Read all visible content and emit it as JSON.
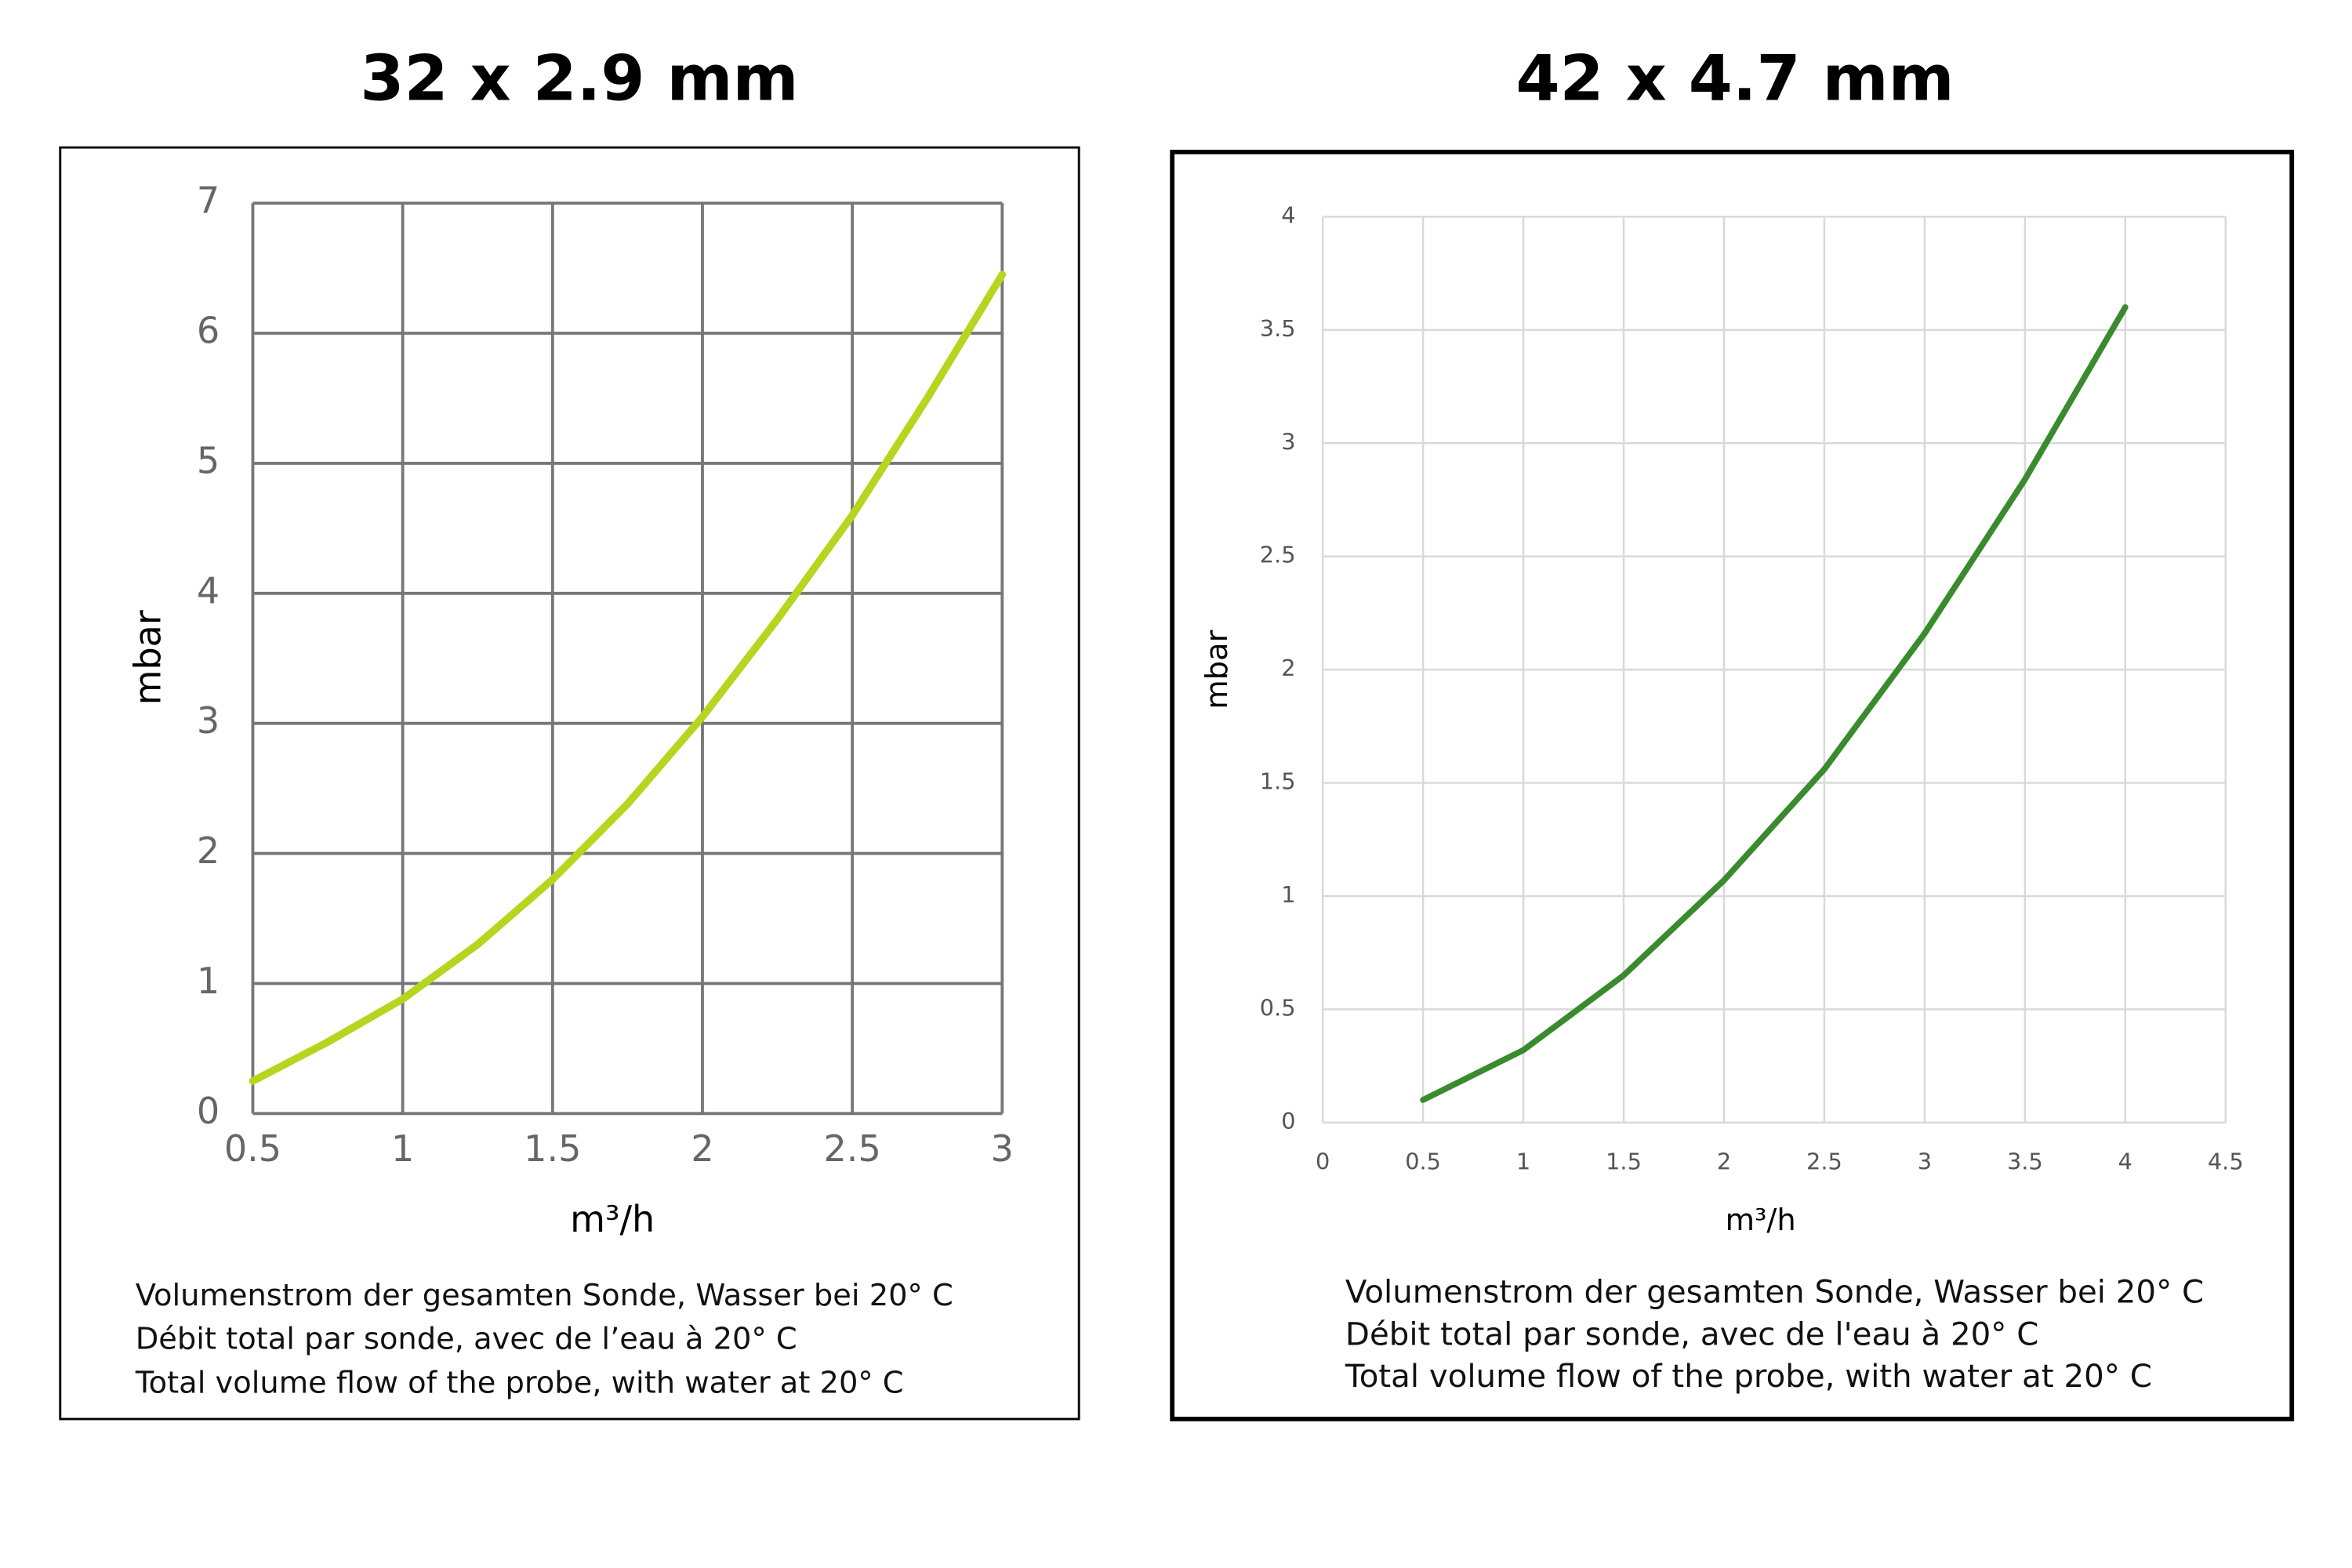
{
  "chart_data": [
    {
      "type": "line",
      "title": "32 x 2.9 mm",
      "y_label": "mbar",
      "x_label": "m³/h",
      "notes": [
        "Volumenstrom der gesamten Sonde, Wasser bei 20° C",
        "Débit total par sonde, avec de l’eau à 20° C",
        "Total volume flow of the probe, with water at 20° C"
      ],
      "x": [
        0.5,
        0.75,
        1,
        1.25,
        1.5,
        1.75,
        2,
        2.25,
        2.5,
        2.75,
        3
      ],
      "values": [
        0.25,
        0.55,
        0.88,
        1.3,
        1.8,
        2.38,
        3.05,
        3.8,
        4.6,
        5.5,
        6.45
      ],
      "color": "#b5d61e",
      "xlim": [
        0.5,
        3
      ],
      "xticks": [
        0.5,
        1,
        1.5,
        2,
        2.5,
        3
      ],
      "ylim": [
        0,
        7
      ],
      "yticks": [
        0,
        1,
        2,
        3,
        4,
        5,
        6,
        7
      ],
      "grid": true
    },
    {
      "type": "line",
      "title": "42 x 4.7 mm",
      "y_label": "mbar",
      "x_label": "m³/h",
      "notes": [
        "Volumenstrom der gesamten Sonde, Wasser bei 20° C",
        "Débit total par sonde, avec de l'eau à 20° C",
        "Total volume flow of the probe, with water at 20° C"
      ],
      "x": [
        0.5,
        1,
        1.5,
        2,
        2.5,
        3,
        3.5,
        4
      ],
      "values": [
        0.1,
        0.32,
        0.65,
        1.07,
        1.56,
        2.16,
        2.84,
        3.6
      ],
      "color": "#3a8a2e",
      "xlim": [
        0,
        4.5
      ],
      "xticks": [
        0,
        0.5,
        1,
        1.5,
        2,
        2.5,
        3,
        3.5,
        4,
        4.5
      ],
      "ylim": [
        0,
        4
      ],
      "yticks": [
        0,
        0.5,
        1,
        1.5,
        2,
        2.5,
        3,
        3.5,
        4
      ],
      "grid": true
    }
  ]
}
